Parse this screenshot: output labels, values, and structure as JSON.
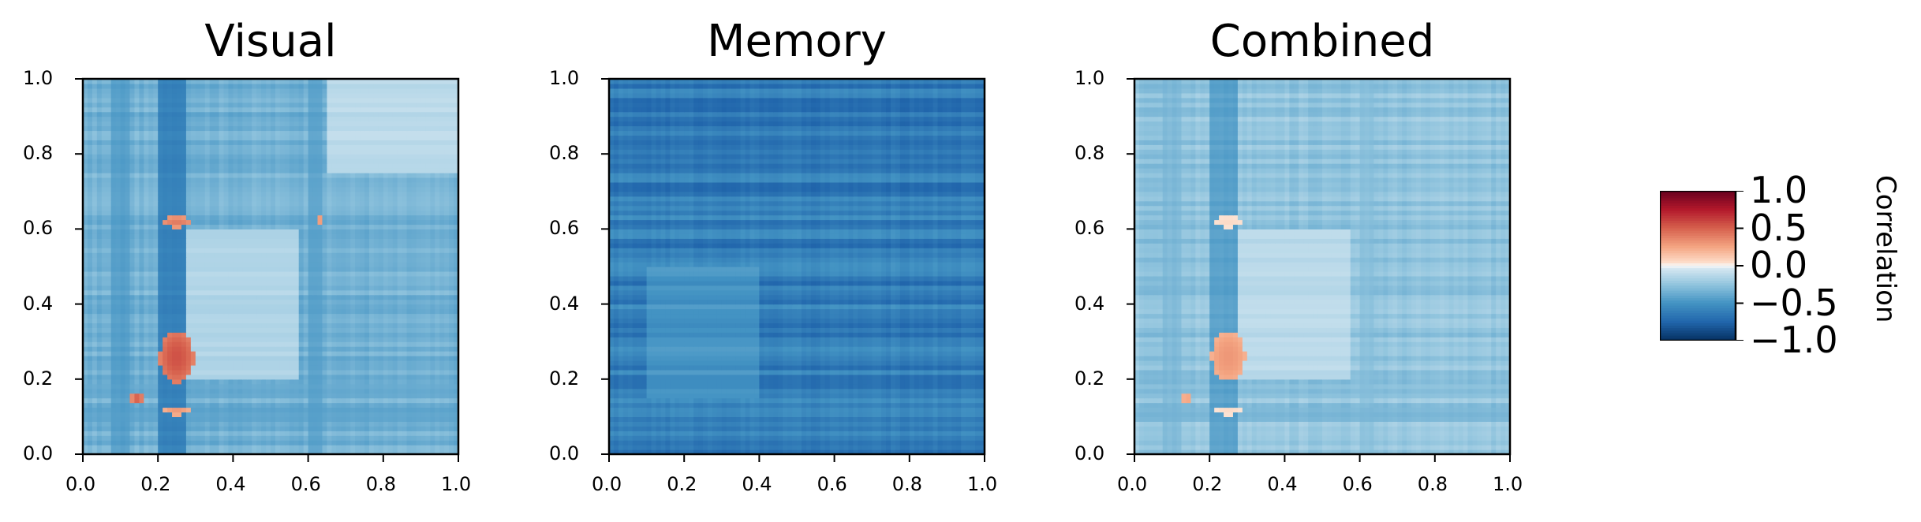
{
  "chart_data": [
    {
      "type": "heatmap",
      "title": "Visual",
      "xlim": [
        0,
        1
      ],
      "ylim": [
        0,
        1
      ],
      "xticks": [
        "0.0",
        "0.2",
        "0.4",
        "0.6",
        "0.8",
        "1.0"
      ],
      "yticks": [
        "0.0",
        "0.2",
        "0.4",
        "0.6",
        "0.8",
        "1.0"
      ],
      "base": -0.35,
      "features": [
        {
          "kind": "vband",
          "x0": 0.2,
          "x1": 0.28,
          "value": -0.75
        },
        {
          "kind": "vband",
          "x0": 0.08,
          "x1": 0.12,
          "value": -0.5
        },
        {
          "kind": "vband",
          "x0": 0.6,
          "x1": 0.64,
          "value": -0.45
        },
        {
          "kind": "hband",
          "y0": 0.09,
          "y1": 0.13,
          "value": -0.45
        },
        {
          "kind": "hband",
          "y0": 0.15,
          "y1": 0.19,
          "value": -0.4
        },
        {
          "kind": "blob",
          "x": 0.25,
          "y": 0.26,
          "rx": 0.045,
          "ry": 0.07,
          "value": 0.55
        },
        {
          "kind": "blob",
          "x": 0.25,
          "y": 0.62,
          "rx": 0.04,
          "ry": 0.015,
          "value": 0.4
        },
        {
          "kind": "blob",
          "x": 0.25,
          "y": 0.115,
          "rx": 0.035,
          "ry": 0.01,
          "value": 0.3
        },
        {
          "kind": "blob",
          "x": 0.145,
          "y": 0.15,
          "rx": 0.015,
          "ry": 0.018,
          "value": 0.5
        },
        {
          "kind": "blob",
          "x": 0.63,
          "y": 0.625,
          "rx": 0.012,
          "ry": 0.012,
          "value": 0.3
        },
        {
          "kind": "region",
          "x0": 0.28,
          "x1": 0.58,
          "y0": 0.2,
          "y1": 0.6,
          "value": -0.15
        },
        {
          "kind": "region",
          "x0": 0.65,
          "x1": 1.0,
          "y0": 0.75,
          "y1": 1.0,
          "value": -0.12
        }
      ]
    },
    {
      "type": "heatmap",
      "title": "Memory",
      "xlim": [
        0,
        1
      ],
      "ylim": [
        0,
        1
      ],
      "xticks": [
        "0.0",
        "0.2",
        "0.4",
        "0.6",
        "0.8",
        "1.0"
      ],
      "yticks": [
        "0.0",
        "0.2",
        "0.4",
        "0.6",
        "0.8",
        "1.0"
      ],
      "base": -0.62,
      "features": [
        {
          "kind": "region",
          "x0": 0.1,
          "x1": 0.4,
          "y0": 0.15,
          "y1": 0.5,
          "value": -0.5
        }
      ]
    },
    {
      "type": "heatmap",
      "title": "Combined",
      "xlim": [
        0,
        1
      ],
      "ylim": [
        0,
        1
      ],
      "xticks": [
        "0.0",
        "0.2",
        "0.4",
        "0.6",
        "0.8",
        "1.0"
      ],
      "yticks": [
        "0.0",
        "0.2",
        "0.4",
        "0.6",
        "0.8",
        "1.0"
      ],
      "base": -0.25,
      "features": [
        {
          "kind": "vband",
          "x0": 0.2,
          "x1": 0.28,
          "value": -0.55
        },
        {
          "kind": "vband",
          "x0": 0.08,
          "x1": 0.12,
          "value": -0.35
        },
        {
          "kind": "vband",
          "x0": 0.6,
          "x1": 0.64,
          "value": -0.3
        },
        {
          "kind": "hband",
          "y0": 0.09,
          "y1": 0.13,
          "value": -0.35
        },
        {
          "kind": "hband",
          "y0": 0.15,
          "y1": 0.19,
          "value": -0.3
        },
        {
          "kind": "blob",
          "x": 0.25,
          "y": 0.26,
          "rx": 0.045,
          "ry": 0.065,
          "value": 0.3
        },
        {
          "kind": "blob",
          "x": 0.25,
          "y": 0.62,
          "rx": 0.04,
          "ry": 0.015,
          "value": 0.05
        },
        {
          "kind": "blob",
          "x": 0.25,
          "y": 0.115,
          "rx": 0.035,
          "ry": 0.01,
          "value": 0.05
        },
        {
          "kind": "blob",
          "x": 0.14,
          "y": 0.15,
          "rx": 0.015,
          "ry": 0.018,
          "value": 0.25
        },
        {
          "kind": "region",
          "x0": 0.28,
          "x1": 0.58,
          "y0": 0.2,
          "y1": 0.6,
          "value": -0.12
        }
      ]
    }
  ],
  "colorbar": {
    "label": "Correlation",
    "ticks": [
      "1.0",
      "0.5",
      "0.0",
      "−0.5",
      "−1.0"
    ],
    "tick_values": [
      1.0,
      0.5,
      0.0,
      -0.5,
      -1.0
    ],
    "range": [
      -1,
      1
    ],
    "colormap": "RdBu_r"
  }
}
